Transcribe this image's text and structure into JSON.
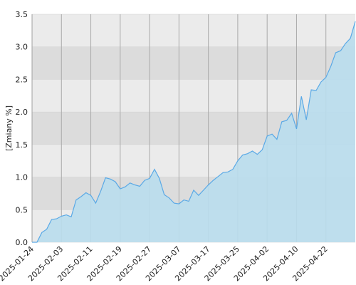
{
  "chart_data": {
    "type": "area",
    "y_label": "[Zmiany %]",
    "categories": [
      "2025-01-24",
      null,
      null,
      null,
      null,
      null,
      "2025-02-03",
      null,
      null,
      null,
      null,
      null,
      "2025-02-11",
      null,
      null,
      null,
      null,
      null,
      "2025-02-19",
      null,
      null,
      null,
      null,
      null,
      "2025-02-27",
      null,
      null,
      null,
      null,
      null,
      "2025-03-07",
      null,
      null,
      null,
      null,
      null,
      "2025-03-17",
      null,
      null,
      null,
      null,
      null,
      "2025-03-25",
      null,
      null,
      null,
      null,
      null,
      "2025-04-02",
      null,
      null,
      null,
      null,
      null,
      "2025-04-10",
      null,
      null,
      null,
      null,
      null,
      "2025-04-22",
      null,
      null,
      null,
      null,
      null,
      null
    ],
    "series": [
      {
        "color": "#5aa9e6",
        "fill": "#b9dded",
        "values": [
          0.0,
          0.0,
          0.15,
          0.2,
          0.35,
          0.36,
          0.4,
          0.42,
          0.39,
          0.65,
          0.7,
          0.76,
          0.72,
          0.6,
          0.78,
          0.99,
          0.97,
          0.93,
          0.82,
          0.85,
          0.91,
          0.88,
          0.86,
          0.95,
          0.98,
          1.12,
          0.98,
          0.73,
          0.68,
          0.6,
          0.59,
          0.65,
          0.63,
          0.8,
          0.72,
          0.8,
          0.88,
          0.95,
          1.01,
          1.07,
          1.08,
          1.12,
          1.25,
          1.34,
          1.36,
          1.4,
          1.35,
          1.42,
          1.63,
          1.66,
          1.58,
          1.85,
          1.87,
          1.98,
          1.74,
          2.24,
          1.88,
          2.34,
          2.33,
          2.46,
          2.53,
          2.7,
          2.91,
          2.94,
          3.05,
          3.13,
          3.39
        ]
      }
    ],
    "ylim": [
      0,
      3.5
    ],
    "yticks": [
      {
        "value": 0,
        "label": "0.0"
      },
      {
        "value": 0.5,
        "label": "0.5"
      },
      {
        "value": 1,
        "label": "1.0"
      },
      {
        "value": 1.5,
        "label": "1.5"
      },
      {
        "value": 2,
        "label": "2.0"
      },
      {
        "value": 2.5,
        "label": "2.5"
      },
      {
        "value": 3,
        "label": "3.0"
      },
      {
        "value": 3.5,
        "label": "3.5"
      }
    ],
    "band_colors": [
      "#ebebeb",
      "#dcdcdc"
    ],
    "grid": true
  }
}
